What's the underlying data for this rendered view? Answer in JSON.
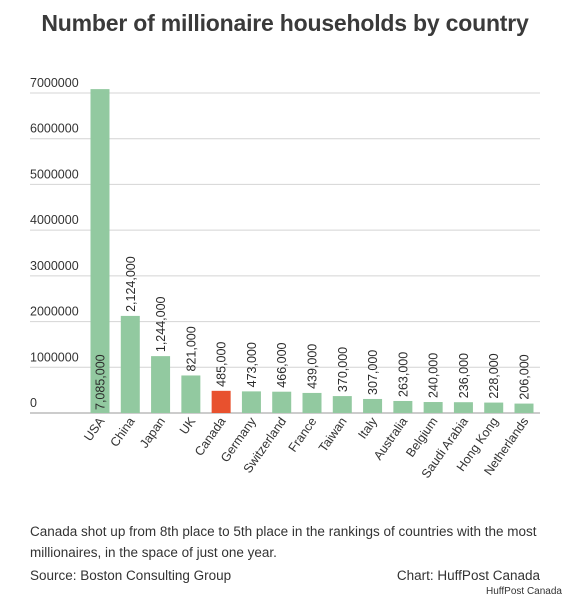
{
  "title": "Number of millionaire households by country",
  "caption": "Canada shot up from 8th place to 5th place in the rankings of countries with the most millionaires, in the space of just one year.",
  "source": "Source: Boston Consulting Group",
  "credit": "Chart: HuffPost Canada",
  "watermark": "HuffPost Canada",
  "colors": {
    "bar": "#92c9a0",
    "highlight": "#e8512e",
    "grid": "#d4d4d4",
    "text": "#333333"
  },
  "chart_data": {
    "type": "bar",
    "categories": [
      "USA",
      "China",
      "Japan",
      "UK",
      "Canada",
      "Germany",
      "Switzerland",
      "France",
      "Taiwan",
      "Italy",
      "Australia",
      "Belgium",
      "Saudi Arabia",
      "Hong Kong",
      "Netherlands"
    ],
    "values": [
      7085000,
      2124000,
      1244000,
      821000,
      485000,
      473000,
      466000,
      439000,
      370000,
      307000,
      263000,
      240000,
      236000,
      228000,
      206000
    ],
    "data_labels": [
      "7,085,000",
      "2,124,000",
      "1,244,000",
      "821,000",
      "485,000",
      "473,000",
      "466,000",
      "439,000",
      "370,000",
      "307,000",
      "263,000",
      "240,000",
      "236,000",
      "228,000",
      "206,000"
    ],
    "yticks": [
      0,
      1000000,
      2000000,
      3000000,
      4000000,
      5000000,
      6000000,
      7000000
    ],
    "ytick_labels": [
      "0",
      "1000000",
      "2000000",
      "3000000",
      "4000000",
      "5000000",
      "6000000",
      "7000000"
    ],
    "ylim": [
      0,
      7000000
    ],
    "highlight": "Canada",
    "grid": true
  }
}
